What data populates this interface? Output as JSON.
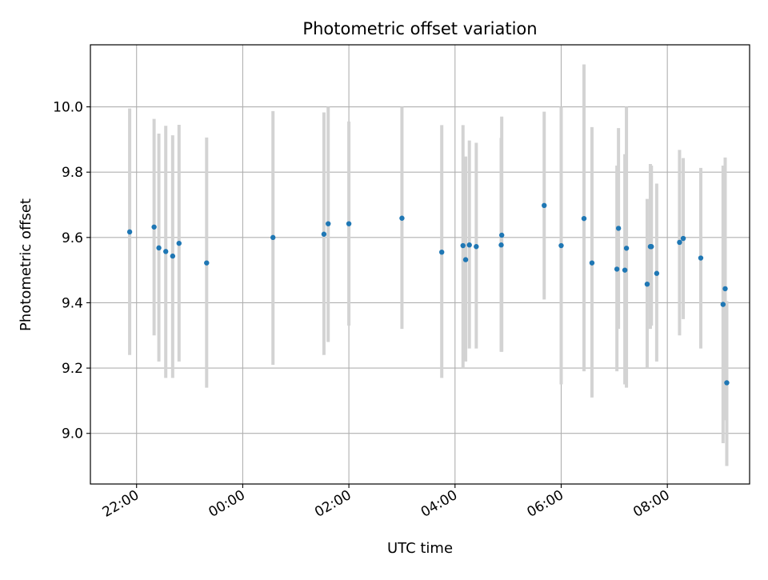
{
  "chart_data": {
    "type": "scatter",
    "title": "Photometric offset variation",
    "xlabel": "UTC time",
    "ylabel": "Photometric offset",
    "x_unit": "hours (UTC clock, values past 24:00 continue into the next day)",
    "xlim": [
      21.13,
      33.55
    ],
    "ylim": [
      8.845,
      10.19
    ],
    "x_ticks": [
      {
        "value": 22,
        "label": "22:00"
      },
      {
        "value": 24,
        "label": "00:00"
      },
      {
        "value": 26,
        "label": "02:00"
      },
      {
        "value": 28,
        "label": "04:00"
      },
      {
        "value": 30,
        "label": "06:00"
      },
      {
        "value": 32,
        "label": "08:00"
      }
    ],
    "y_ticks": [
      {
        "value": 9.0,
        "label": "9.0"
      },
      {
        "value": 9.2,
        "label": "9.2"
      },
      {
        "value": 9.4,
        "label": "9.4"
      },
      {
        "value": 9.6,
        "label": "9.6"
      },
      {
        "value": 9.8,
        "label": "9.8"
      },
      {
        "value": 10.0,
        "label": "10.0"
      }
    ],
    "grid": true,
    "colors": {
      "points": "#1f77b4",
      "errorbars": "#d3d3d3",
      "grid": "#b0b0b0"
    },
    "series": [
      {
        "points": [
          {
            "x": 21.87,
            "y": 9.617,
            "err_low": 9.24,
            "err_high": 9.995
          },
          {
            "x": 22.33,
            "y": 9.632,
            "err_low": 9.3,
            "err_high": 9.963
          },
          {
            "x": 22.42,
            "y": 9.568,
            "err_low": 9.22,
            "err_high": 9.918
          },
          {
            "x": 22.55,
            "y": 9.557,
            "err_low": 9.17,
            "err_high": 9.942
          },
          {
            "x": 22.68,
            "y": 9.543,
            "err_low": 9.17,
            "err_high": 9.913
          },
          {
            "x": 22.8,
            "y": 9.582,
            "err_low": 9.22,
            "err_high": 9.945
          },
          {
            "x": 23.32,
            "y": 9.522,
            "err_low": 9.14,
            "err_high": 9.906
          },
          {
            "x": 24.57,
            "y": 9.6,
            "err_low": 9.21,
            "err_high": 9.987
          },
          {
            "x": 25.53,
            "y": 9.61,
            "err_low": 9.24,
            "err_high": 9.983
          },
          {
            "x": 25.61,
            "y": 9.642,
            "err_low": 9.28,
            "err_high": 10.0
          },
          {
            "x": 26.0,
            "y": 9.642,
            "err_low": 9.33,
            "err_high": 9.955
          },
          {
            "x": 27.0,
            "y": 9.659,
            "err_low": 9.32,
            "err_high": 10.0
          },
          {
            "x": 27.75,
            "y": 9.555,
            "err_low": 9.17,
            "err_high": 9.944
          },
          {
            "x": 28.15,
            "y": 9.575,
            "err_low": 9.2,
            "err_high": 9.944
          },
          {
            "x": 28.2,
            "y": 9.532,
            "err_low": 9.22,
            "err_high": 9.848
          },
          {
            "x": 28.27,
            "y": 9.577,
            "err_low": 9.26,
            "err_high": 9.897
          },
          {
            "x": 28.4,
            "y": 9.572,
            "err_low": 9.26,
            "err_high": 9.89
          },
          {
            "x": 28.87,
            "y": 9.577,
            "err_low": 9.25,
            "err_high": 9.905
          },
          {
            "x": 28.88,
            "y": 9.607,
            "err_low": 9.25,
            "err_high": 9.97
          },
          {
            "x": 29.68,
            "y": 9.698,
            "err_low": 9.41,
            "err_high": 9.985
          },
          {
            "x": 30.0,
            "y": 9.575,
            "err_low": 9.15,
            "err_high": 10.0
          },
          {
            "x": 30.43,
            "y": 9.658,
            "err_low": 9.19,
            "err_high": 10.13
          },
          {
            "x": 30.58,
            "y": 9.522,
            "err_low": 9.11,
            "err_high": 9.938
          },
          {
            "x": 31.05,
            "y": 9.503,
            "err_low": 9.19,
            "err_high": 9.82
          },
          {
            "x": 31.08,
            "y": 9.628,
            "err_low": 9.32,
            "err_high": 9.935
          },
          {
            "x": 31.2,
            "y": 9.5,
            "err_low": 9.15,
            "err_high": 9.855
          },
          {
            "x": 31.23,
            "y": 9.567,
            "err_low": 9.14,
            "err_high": 10.0
          },
          {
            "x": 31.62,
            "y": 9.457,
            "err_low": 9.2,
            "err_high": 9.718
          },
          {
            "x": 31.68,
            "y": 9.572,
            "err_low": 9.32,
            "err_high": 9.825
          },
          {
            "x": 31.7,
            "y": 9.572,
            "err_low": 9.33,
            "err_high": 9.82
          },
          {
            "x": 31.8,
            "y": 9.49,
            "err_low": 9.22,
            "err_high": 9.765
          },
          {
            "x": 32.23,
            "y": 9.585,
            "err_low": 9.3,
            "err_high": 9.868
          },
          {
            "x": 32.3,
            "y": 9.597,
            "err_low": 9.35,
            "err_high": 9.843
          },
          {
            "x": 32.63,
            "y": 9.537,
            "err_low": 9.26,
            "err_high": 9.813
          },
          {
            "x": 33.05,
            "y": 9.395,
            "err_low": 8.97,
            "err_high": 9.82
          },
          {
            "x": 33.09,
            "y": 9.443,
            "err_low": 9.04,
            "err_high": 9.845
          },
          {
            "x": 33.12,
            "y": 9.155,
            "err_low": 8.9,
            "err_high": 9.405
          }
        ]
      }
    ]
  }
}
